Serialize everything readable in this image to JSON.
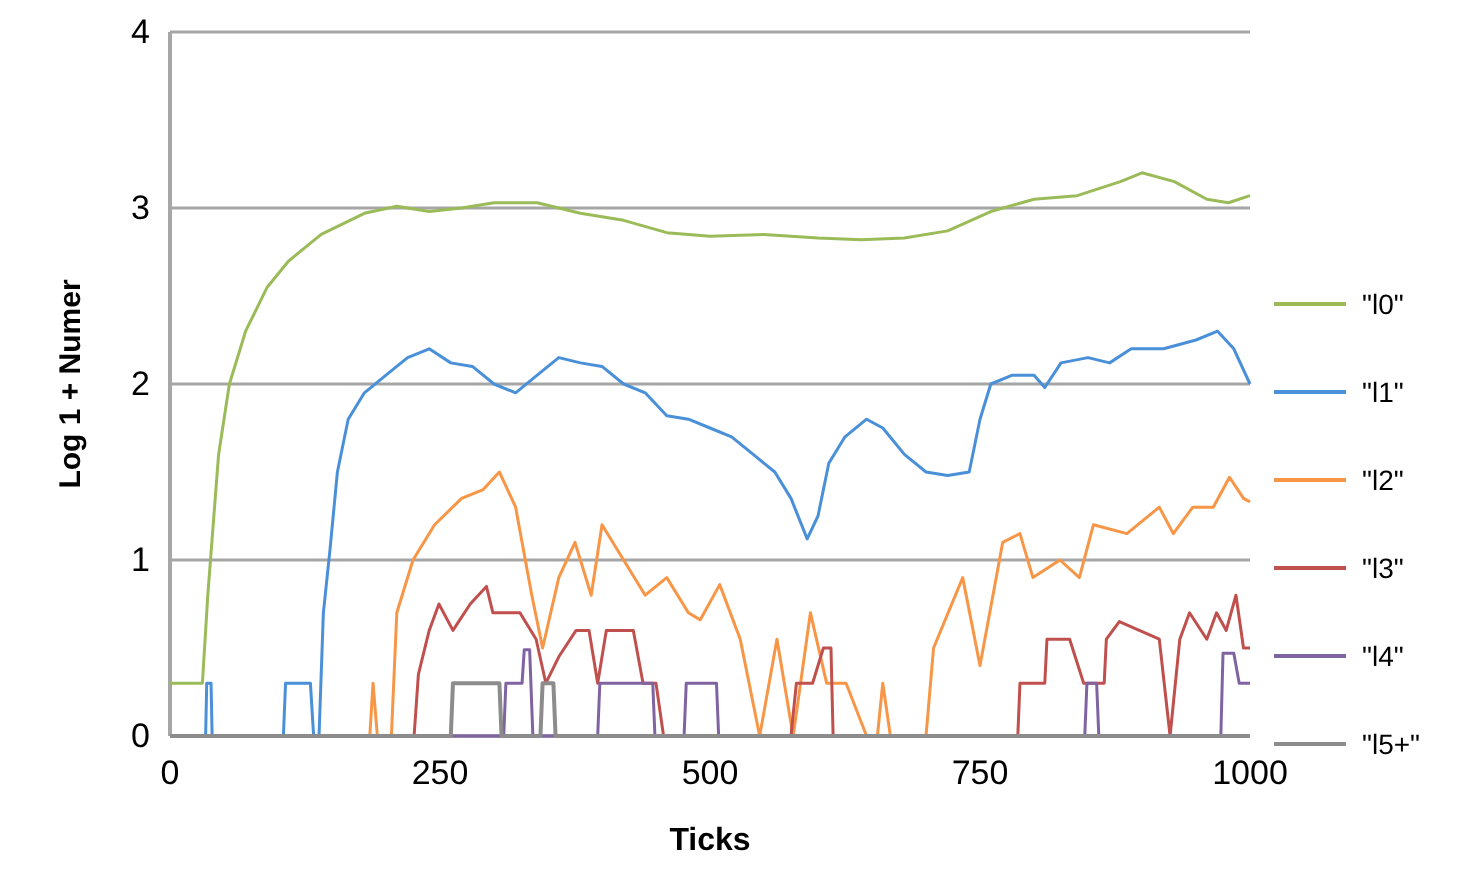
{
  "chart_data": {
    "type": "line",
    "xlabel": "Ticks",
    "ylabel": "Log 1 + Numer",
    "xlim": [
      0,
      1000
    ],
    "xticks": [
      0,
      250,
      500,
      750,
      1000
    ],
    "ylim": [
      0,
      4
    ],
    "yticks": [
      0,
      1,
      2,
      3,
      4
    ],
    "grid": "y",
    "legend": "right",
    "line_style": "solid",
    "marker": "none",
    "series": [
      {
        "name": "\"l0\"",
        "color": "#9bbb59",
        "x": [
          0,
          30,
          35,
          45,
          55,
          70,
          90,
          110,
          140,
          180,
          210,
          240,
          270,
          300,
          340,
          380,
          420,
          460,
          500,
          550,
          600,
          640,
          680,
          720,
          760,
          800,
          840,
          880,
          900,
          930,
          960,
          980,
          1000
        ],
        "values": [
          0.3,
          0.3,
          0.8,
          1.6,
          2.0,
          2.3,
          2.55,
          2.7,
          2.85,
          2.97,
          3.01,
          2.98,
          3.0,
          3.03,
          3.03,
          2.97,
          2.93,
          2.86,
          2.84,
          2.85,
          2.83,
          2.82,
          2.83,
          2.87,
          2.98,
          3.05,
          3.07,
          3.15,
          3.2,
          3.15,
          3.05,
          3.03,
          3.07
        ]
      },
      {
        "name": "\"l1\"",
        "color": "#4a90d9",
        "x": [
          0,
          33,
          34,
          38,
          39,
          105,
          107,
          130,
          133,
          138,
          142,
          148,
          155,
          165,
          180,
          200,
          220,
          240,
          260,
          280,
          300,
          320,
          340,
          360,
          380,
          400,
          420,
          440,
          460,
          480,
          500,
          520,
          540,
          560,
          575,
          590,
          600,
          610,
          625,
          645,
          660,
          680,
          700,
          720,
          740,
          750,
          760,
          780,
          800,
          810,
          825,
          850,
          870,
          890,
          920,
          950,
          970,
          985,
          1000
        ],
        "values": [
          0,
          0,
          0.3,
          0.3,
          0,
          0,
          0.3,
          0.3,
          0,
          0,
          0.7,
          1.05,
          1.5,
          1.8,
          1.95,
          2.05,
          2.15,
          2.2,
          2.12,
          2.1,
          2.0,
          1.95,
          2.05,
          2.15,
          2.12,
          2.1,
          2.0,
          1.95,
          1.82,
          1.8,
          1.75,
          1.7,
          1.6,
          1.5,
          1.35,
          1.12,
          1.25,
          1.55,
          1.7,
          1.8,
          1.75,
          1.6,
          1.5,
          1.48,
          1.5,
          1.8,
          2.0,
          2.05,
          2.05,
          1.98,
          2.12,
          2.15,
          2.12,
          2.2,
          2.2,
          2.25,
          2.3,
          2.2,
          2.0
        ]
      },
      {
        "name": "\"l2\"",
        "color": "#f79646",
        "x": [
          0,
          185,
          188,
          192,
          205,
          210,
          225,
          245,
          270,
          290,
          305,
          320,
          335,
          345,
          360,
          375,
          390,
          400,
          420,
          440,
          460,
          480,
          491,
          509,
          528,
          546,
          562,
          577,
          593,
          608,
          626,
          645,
          655,
          660,
          667,
          700,
          707,
          734,
          750,
          762,
          771,
          787,
          799,
          824,
          842,
          855,
          886,
          916,
          929,
          947,
          966,
          981,
          994,
          1000
        ],
        "values": [
          0,
          0,
          0.3,
          0,
          0,
          0.7,
          1.0,
          1.2,
          1.35,
          1.4,
          1.5,
          1.3,
          0.8,
          0.5,
          0.9,
          1.1,
          0.8,
          1.2,
          1.0,
          0.8,
          0.9,
          0.7,
          0.66,
          0.86,
          0.55,
          0,
          0.55,
          0,
          0.7,
          0.3,
          0.3,
          0,
          0,
          0.3,
          0,
          0,
          0.5,
          0.9,
          0.4,
          0.8,
          1.1,
          1.15,
          0.9,
          1.0,
          0.9,
          1.2,
          1.15,
          1.3,
          1.15,
          1.3,
          1.3,
          1.47,
          1.35,
          1.33
        ]
      },
      {
        "name": "\"l3\"",
        "color": "#c0504d",
        "x": [
          0,
          226,
          230,
          240,
          249,
          262,
          278,
          293,
          299,
          324,
          339,
          348,
          360,
          376,
          388,
          396,
          404,
          429,
          438,
          450,
          457,
          575,
          580,
          595,
          605,
          612,
          614,
          785,
          787,
          810,
          812,
          833,
          846,
          865,
          867,
          879,
          916,
          926,
          935,
          944,
          960,
          969,
          978,
          987,
          994,
          1000
        ],
        "values": [
          0,
          0,
          0.35,
          0.6,
          0.75,
          0.6,
          0.75,
          0.85,
          0.7,
          0.7,
          0.55,
          0.3,
          0.45,
          0.6,
          0.6,
          0.3,
          0.6,
          0.6,
          0.3,
          0.3,
          0,
          0,
          0.3,
          0.3,
          0.5,
          0.5,
          0,
          0,
          0.3,
          0.3,
          0.55,
          0.55,
          0.3,
          0.3,
          0.55,
          0.65,
          0.55,
          0,
          0.55,
          0.7,
          0.55,
          0.7,
          0.6,
          0.8,
          0.5,
          0.5
        ]
      },
      {
        "name": "\"l4\"",
        "color": "#8064a2",
        "x": [
          0,
          309,
          311,
          326,
          328,
          333,
          336,
          396,
          398,
          447,
          449,
          476,
          478,
          506,
          508,
          847,
          849,
          858,
          860,
          973,
          975,
          985,
          990,
          1000
        ],
        "values": [
          0,
          0,
          0.3,
          0.3,
          0.49,
          0.49,
          0,
          0,
          0.3,
          0.3,
          0,
          0,
          0.3,
          0.3,
          0,
          0,
          0.3,
          0.3,
          0,
          0,
          0.47,
          0.47,
          0.3,
          0.3
        ]
      },
      {
        "name": "\"l5+\"",
        "color": "#8c8c8c",
        "x": [
          0,
          260,
          262,
          305,
          307,
          343,
          345,
          355,
          357,
          1000
        ],
        "values": [
          0,
          0,
          0.3,
          0.3,
          0,
          0,
          0.3,
          0.3,
          0,
          0
        ]
      }
    ]
  }
}
